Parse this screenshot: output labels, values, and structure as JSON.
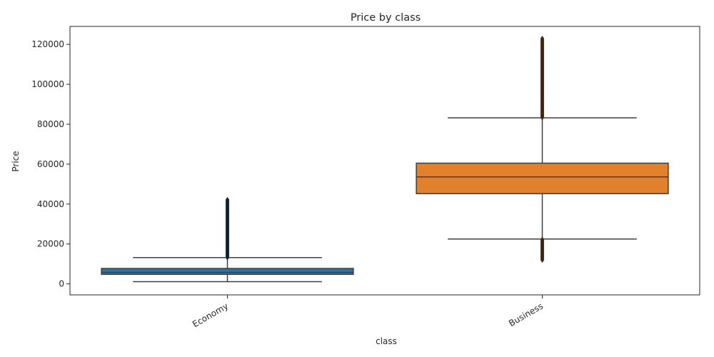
{
  "chart_data": {
    "type": "box",
    "title": "Price by class",
    "xlabel": "class",
    "ylabel": "Price",
    "ylim": [
      -5500,
      129000
    ],
    "yticks": [
      0,
      20000,
      40000,
      60000,
      80000,
      100000,
      120000
    ],
    "ytick_labels": [
      "0",
      "20000",
      "40000",
      "60000",
      "80000",
      "100000",
      "120000"
    ],
    "grid": false,
    "categories": [
      "Economy",
      "Business"
    ],
    "boxes": [
      {
        "category": "Economy",
        "color": "#3274a1",
        "whisker_low": 1105,
        "q1": 4783,
        "median": 5772,
        "q3": 7746,
        "whisker_high": 13200,
        "outliers_min": 13300,
        "outliers_max": 42350
      },
      {
        "category": "Business",
        "color": "#e1812c",
        "whisker_low": 22500,
        "q1": 45200,
        "median": 53600,
        "q3": 60500,
        "whisker_high": 83200,
        "outliers_low_min": 12000,
        "outliers_low_max": 22300,
        "outliers_high_min": 83400,
        "outliers_high_max": 123100
      }
    ]
  }
}
